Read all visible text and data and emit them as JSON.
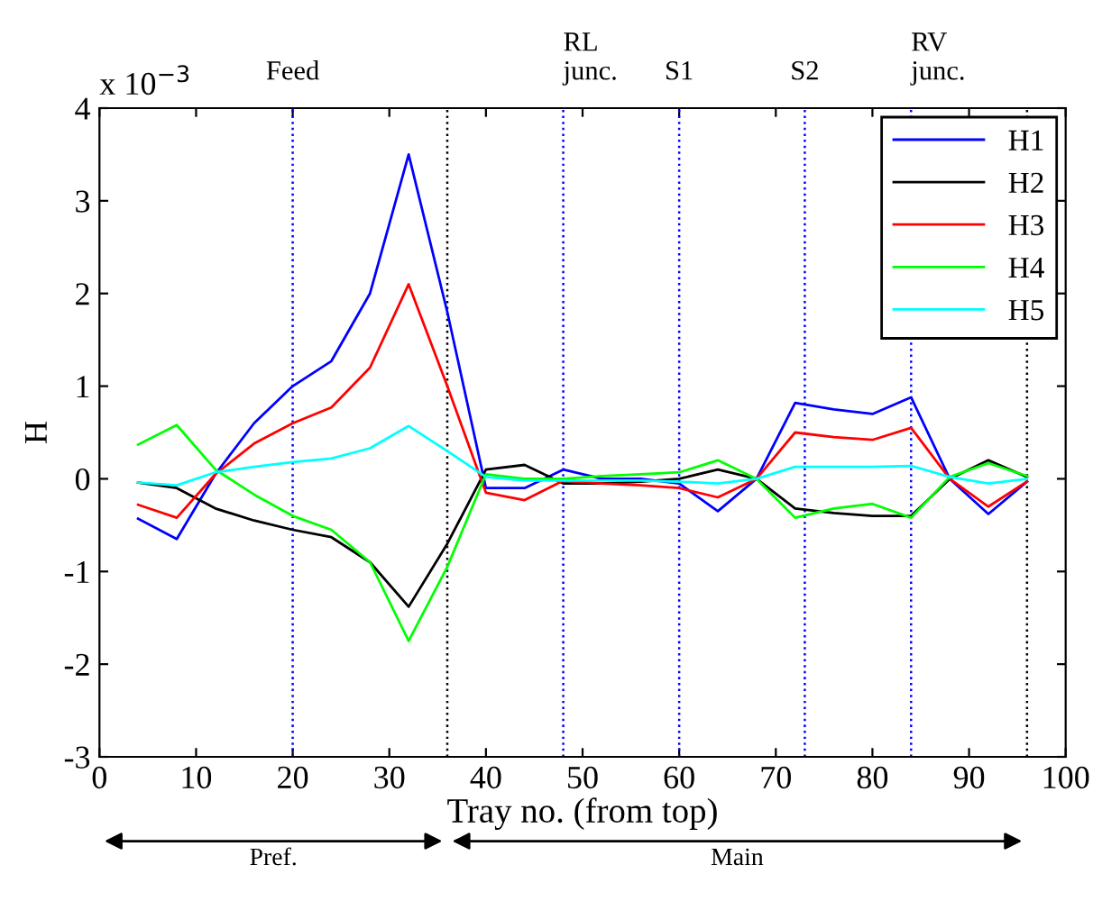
{
  "chart_data": {
    "type": "line",
    "xlabel": "Tray no. (from top)",
    "ylabel": "H",
    "x": [
      4,
      8,
      12,
      16,
      20,
      24,
      28,
      32,
      36,
      40,
      44,
      48,
      52,
      56,
      60,
      64,
      68,
      72,
      76,
      80,
      84,
      88,
      92,
      96
    ],
    "series": [
      {
        "name": "H1",
        "color": "#0000ff",
        "values": [
          -0.43,
          -0.65,
          0.05,
          0.6,
          1.0,
          1.27,
          2.0,
          3.5,
          1.8,
          -0.1,
          -0.1,
          0.1,
          0,
          0,
          -0.05,
          -0.35,
          0,
          0.82,
          0.75,
          0.7,
          0.88,
          0,
          -0.38,
          -0.03
        ]
      },
      {
        "name": "H2",
        "color": "#000000",
        "values": [
          -0.04,
          -0.1,
          -0.32,
          -0.45,
          -0.55,
          -0.63,
          -0.9,
          -1.38,
          -0.7,
          0.1,
          0.15,
          -0.05,
          -0.05,
          -0.03,
          0,
          0.1,
          0,
          -0.32,
          -0.37,
          -0.4,
          -0.4,
          0,
          0.2,
          0.02
        ]
      },
      {
        "name": "H3",
        "color": "#ff0000",
        "values": [
          -0.28,
          -0.42,
          0.05,
          0.38,
          0.6,
          0.77,
          1.2,
          2.1,
          1.0,
          -0.15,
          -0.23,
          -0.02,
          -0.05,
          -0.07,
          -0.1,
          -0.2,
          0,
          0.5,
          0.45,
          0.42,
          0.55,
          0,
          -0.3,
          -0.03
        ]
      },
      {
        "name": "H4",
        "color": "#00ff00",
        "values": [
          0.37,
          0.58,
          0.1,
          -0.17,
          -0.4,
          -0.55,
          -0.9,
          -1.75,
          -0.95,
          0.05,
          0,
          0,
          0.03,
          0.05,
          0.07,
          0.2,
          0,
          -0.42,
          -0.32,
          -0.27,
          -0.42,
          0.02,
          0.17,
          0.03
        ]
      },
      {
        "name": "H5",
        "color": "#00ffff",
        "values": [
          -0.04,
          -0.07,
          0.07,
          0.13,
          0.18,
          0.22,
          0.33,
          0.57,
          0.3,
          0.02,
          -0.02,
          -0.02,
          -0.02,
          -0.02,
          -0.03,
          -0.05,
          0,
          0.13,
          0.13,
          0.13,
          0.14,
          0.02,
          -0.05,
          0
        ]
      }
    ],
    "xlim": [
      0,
      100
    ],
    "xticks": [
      0,
      10,
      20,
      30,
      40,
      50,
      60,
      70,
      80,
      90,
      100
    ],
    "ylim": [
      -3,
      4
    ],
    "yticks": [
      -3,
      -2,
      -1,
      0,
      1,
      2,
      3,
      4
    ],
    "annotations": [
      "x 10$^{−3}$",
      "Pref.",
      "Main"
    ],
    "ref_lines": [
      {
        "axis": "x",
        "value": 20,
        "label": "Feed",
        "color": "#0000ff",
        "line_style": "dotted"
      },
      {
        "axis": "x",
        "value": 36,
        "label": null,
        "color": "#000000",
        "line_style": "dotted"
      },
      {
        "axis": "x",
        "value": 48,
        "label": "RL\njunc.",
        "color": "#0000ff",
        "line_style": "dotted"
      },
      {
        "axis": "x",
        "value": 60,
        "label": "S1",
        "color": "#0000ff",
        "line_style": "dotted"
      },
      {
        "axis": "x",
        "value": 73,
        "label": "S2",
        "color": "#0000ff",
        "line_style": "dotted"
      },
      {
        "axis": "x",
        "value": 84,
        "label": "RV\njunc.",
        "color": "#0000ff",
        "line_style": "dotted"
      },
      {
        "axis": "x",
        "value": 96,
        "label": null,
        "color": "#000000",
        "line_style": "dotted"
      }
    ],
    "legend": "top right",
    "grid": false,
    "line_style": "solid",
    "marker": "none"
  }
}
